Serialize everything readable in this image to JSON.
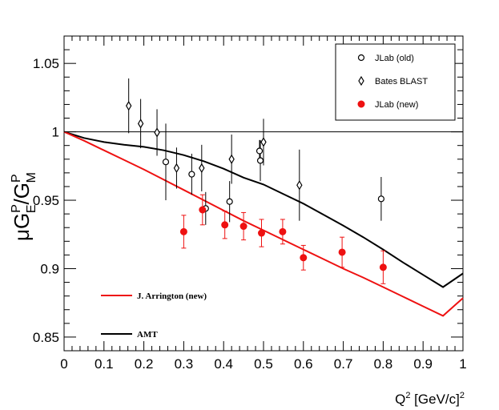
{
  "chart_data": {
    "type": "scatter",
    "title": "",
    "xlabel": {
      "base": "Q",
      "sup": "2",
      "mid": " [GeV/c]",
      "sup2": "2"
    },
    "ylabel": {
      "mu": "μ",
      "g1": "G",
      "g1_sup": "P",
      "g1_sub": "E",
      "slash": "/",
      "g2": "G",
      "g2_sup": "P",
      "g2_sub": "M"
    },
    "xlim": [
      0,
      1
    ],
    "ylim": [
      0.84,
      1.07
    ],
    "x_ticks": [
      0,
      0.1,
      0.2,
      0.3,
      0.4,
      0.5,
      0.6,
      0.7,
      0.8,
      0.9,
      1
    ],
    "x_tick_labels": [
      "0",
      "0.1",
      "0.2",
      "0.3",
      "0.4",
      "0.5",
      "0.6",
      "0.7",
      "0.8",
      "0.9",
      "1"
    ],
    "y_ticks": [
      0.85,
      0.9,
      0.95,
      1,
      1.05
    ],
    "y_tick_labels": [
      "0.85",
      "0.9",
      "0.95",
      "1",
      "1.05"
    ],
    "reference_line": {
      "y": 1
    },
    "legend": {
      "position": "top-right",
      "entries": [
        {
          "label": "JLab (old)",
          "marker": "open-circle"
        },
        {
          "label": "Bates BLAST",
          "marker": "open-diamond"
        },
        {
          "label": "JLab (new)",
          "marker": "filled-circle"
        }
      ]
    },
    "line_labels": [
      {
        "label": "J. Arrington (new)",
        "color": "#ee1111"
      },
      {
        "label": "AMT",
        "color": "#000000"
      }
    ],
    "series": [
      {
        "name": "JLab (old)",
        "marker": "open-circle",
        "color": "#000000",
        "points": [
          {
            "x": 0.255,
            "y": 0.978,
            "err": 0.028
          },
          {
            "x": 0.32,
            "y": 0.969,
            "err": 0.015
          },
          {
            "x": 0.355,
            "y": 0.944,
            "err": 0.012
          },
          {
            "x": 0.415,
            "y": 0.949,
            "err": 0.015
          },
          {
            "x": 0.49,
            "y": 0.986,
            "err": 0.008
          },
          {
            "x": 0.492,
            "y": 0.979,
            "err": 0.015
          },
          {
            "x": 0.795,
            "y": 0.951,
            "err": 0.016
          }
        ]
      },
      {
        "name": "Bates BLAST",
        "marker": "open-diamond",
        "color": "#000000",
        "points": [
          {
            "x": 0.162,
            "y": 1.019,
            "err": 0.02
          },
          {
            "x": 0.192,
            "y": 1.006,
            "err": 0.018
          },
          {
            "x": 0.233,
            "y": 0.9995,
            "err": 0.017
          },
          {
            "x": 0.282,
            "y": 0.9735,
            "err": 0.015
          },
          {
            "x": 0.345,
            "y": 0.9735,
            "err": 0.017
          },
          {
            "x": 0.42,
            "y": 0.98,
            "err": 0.018
          },
          {
            "x": 0.5,
            "y": 0.9925,
            "err": 0.017
          },
          {
            "x": 0.59,
            "y": 0.961,
            "err": 0.026
          }
        ]
      },
      {
        "name": "JLab (new)",
        "marker": "filled-circle",
        "color": "#ee1111",
        "points": [
          {
            "x": 0.3,
            "y": 0.927,
            "err": 0.012
          },
          {
            "x": 0.347,
            "y": 0.943,
            "err": 0.011
          },
          {
            "x": 0.403,
            "y": 0.932,
            "err": 0.01
          },
          {
            "x": 0.45,
            "y": 0.931,
            "err": 0.01
          },
          {
            "x": 0.495,
            "y": 0.926,
            "err": 0.01
          },
          {
            "x": 0.548,
            "y": 0.927,
            "err": 0.009
          },
          {
            "x": 0.6,
            "y": 0.908,
            "err": 0.009
          },
          {
            "x": 0.697,
            "y": 0.912,
            "err": 0.011
          },
          {
            "x": 0.8,
            "y": 0.901,
            "err": 0.012
          }
        ]
      }
    ],
    "curves": [
      {
        "name": "AMT",
        "color": "#000000",
        "x": [
          0,
          0.05,
          0.1,
          0.15,
          0.2,
          0.25,
          0.3,
          0.35,
          0.4,
          0.45,
          0.5,
          0.55,
          0.6,
          0.65,
          0.7,
          0.75,
          0.8,
          0.85,
          0.9,
          0.95,
          1
        ],
        "y": [
          1.0,
          0.9955,
          0.9925,
          0.9905,
          0.989,
          0.9865,
          0.983,
          0.9785,
          0.973,
          0.9665,
          0.9615,
          0.9545,
          0.9475,
          0.9395,
          0.9315,
          0.923,
          0.914,
          0.9045,
          0.8955,
          0.8865,
          0.8965
        ]
      },
      {
        "name": "J. Arrington (new)",
        "color": "#ee1111",
        "x": [
          0,
          0.05,
          0.1,
          0.15,
          0.2,
          0.25,
          0.3,
          0.35,
          0.4,
          0.45,
          0.5,
          0.55,
          0.6,
          0.65,
          0.7,
          0.75,
          0.8,
          0.85,
          0.9,
          0.95,
          1
        ],
        "y": [
          1.0,
          0.9935,
          0.9865,
          0.9795,
          0.9725,
          0.965,
          0.9575,
          0.95,
          0.9425,
          0.935,
          0.928,
          0.921,
          0.914,
          0.907,
          0.9,
          0.8935,
          0.8865,
          0.8795,
          0.8725,
          0.8655,
          0.8785
        ]
      }
    ]
  }
}
